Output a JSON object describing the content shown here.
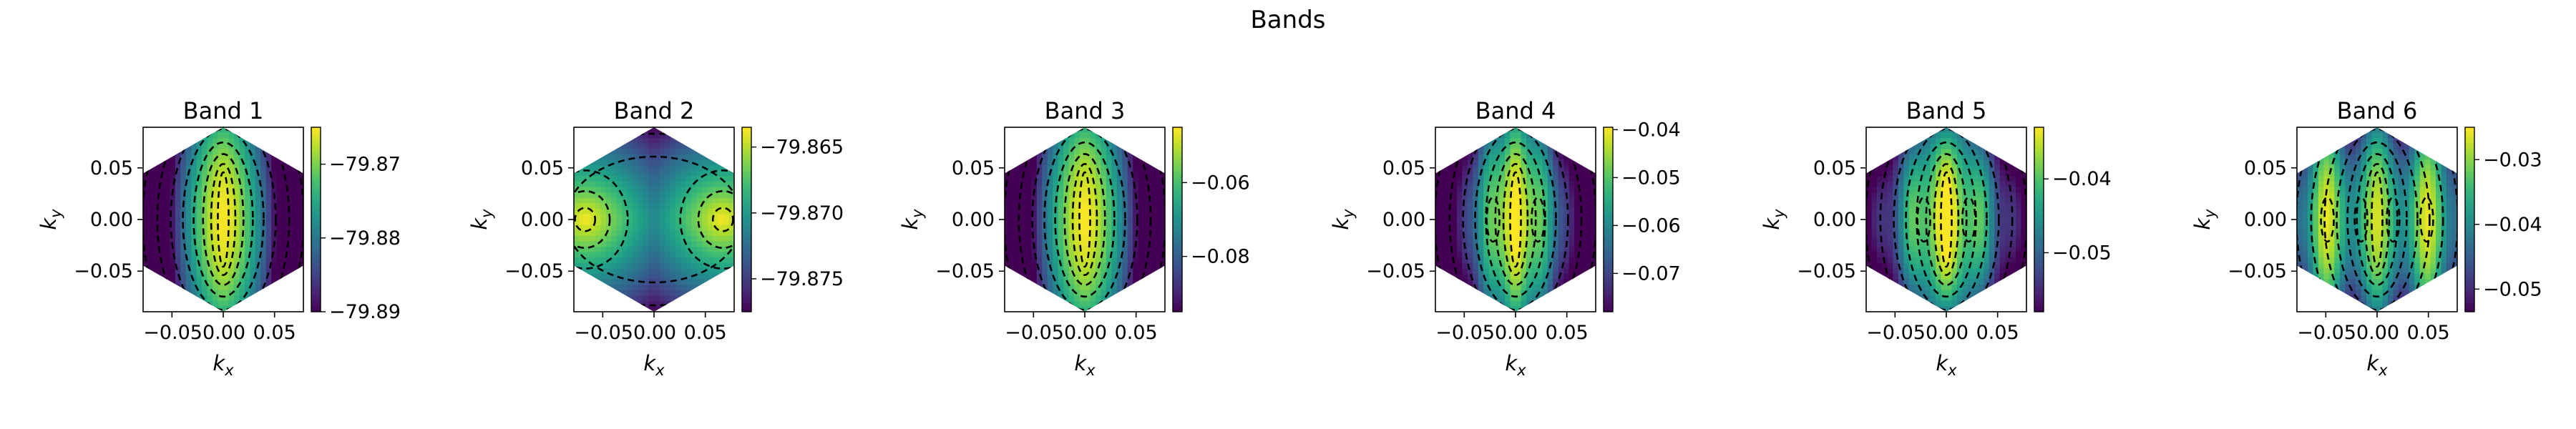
{
  "figure": {
    "suptitle": "Bands",
    "xlabel_base": "k",
    "xlabel_sub": "x",
    "ylabel_base": "k",
    "ylabel_sub": "y",
    "x_ticks": [
      "−0.050.00",
      "0.05"
    ],
    "y_ticks": [
      "0.05",
      "0.00",
      "−0.05"
    ]
  },
  "chart_data": [
    {
      "type": "heatmap",
      "title": "Band 1",
      "xlabel": "kx",
      "ylabel": "ky",
      "xlim": [
        -0.078,
        0.078
      ],
      "ylim": [
        -0.09,
        0.09
      ],
      "colorbar": {
        "range": [
          -79.89,
          -79.865
        ],
        "ticks": [
          -79.87,
          -79.88,
          -79.89
        ],
        "tick_labels": [
          "−79.87",
          "−79.88",
          "−79.89"
        ]
      },
      "pattern": "single-peak",
      "colormap": "viridis",
      "contours": "dashed black"
    },
    {
      "type": "heatmap",
      "title": "Band 2",
      "xlabel": "kx",
      "ylabel": "ky",
      "xlim": [
        -0.078,
        0.078
      ],
      "ylim": [
        -0.09,
        0.09
      ],
      "colorbar": {
        "range": [
          -79.8775,
          -79.8635
        ],
        "ticks": [
          -79.865,
          -79.87,
          -79.875
        ],
        "tick_labels": [
          "−79.865",
          "−79.870",
          "−79.875"
        ]
      },
      "pattern": "double-peak",
      "colormap": "viridis",
      "contours": "dashed black"
    },
    {
      "type": "heatmap",
      "title": "Band 3",
      "xlabel": "kx",
      "ylabel": "ky",
      "xlim": [
        -0.078,
        0.078
      ],
      "ylim": [
        -0.09,
        0.09
      ],
      "colorbar": {
        "range": [
          -0.095,
          -0.045
        ],
        "ticks": [
          -0.06,
          -0.08
        ],
        "tick_labels": [
          "−0.06",
          "−0.08"
        ]
      },
      "pattern": "single-peak",
      "colormap": "viridis",
      "contours": "dashed black"
    },
    {
      "type": "heatmap",
      "title": "Band 4",
      "xlabel": "kx",
      "ylabel": "ky",
      "xlim": [
        -0.078,
        0.078
      ],
      "ylim": [
        -0.09,
        0.09
      ],
      "colorbar": {
        "range": [
          -0.078,
          -0.0395
        ],
        "ticks": [
          -0.04,
          -0.05,
          -0.06,
          -0.07
        ],
        "tick_labels": [
          "−0.04",
          "−0.05",
          "−0.06",
          "−0.07"
        ]
      },
      "pattern": "lobed-peak",
      "colormap": "viridis",
      "contours": "dashed black"
    },
    {
      "type": "heatmap",
      "title": "Band 5",
      "xlabel": "kx",
      "ylabel": "ky",
      "xlim": [
        -0.078,
        0.078
      ],
      "ylim": [
        -0.09,
        0.09
      ],
      "colorbar": {
        "range": [
          -0.058,
          -0.033
        ],
        "ticks": [
          -0.04,
          -0.05
        ],
        "tick_labels": [
          "−0.04",
          "−0.05"
        ]
      },
      "pattern": "multi-lobe",
      "colormap": "viridis",
      "contours": "dashed black"
    },
    {
      "type": "heatmap",
      "title": "Band 6",
      "xlabel": "kx",
      "ylabel": "ky",
      "xlim": [
        -0.078,
        0.078
      ],
      "ylim": [
        -0.09,
        0.09
      ],
      "colorbar": {
        "range": [
          -0.0535,
          -0.025
        ],
        "ticks": [
          -0.03,
          -0.04,
          -0.05
        ],
        "tick_labels": [
          "−0.03",
          "−0.04",
          "−0.05"
        ]
      },
      "pattern": "four-peak",
      "colormap": "viridis",
      "contours": "dashed black"
    }
  ]
}
